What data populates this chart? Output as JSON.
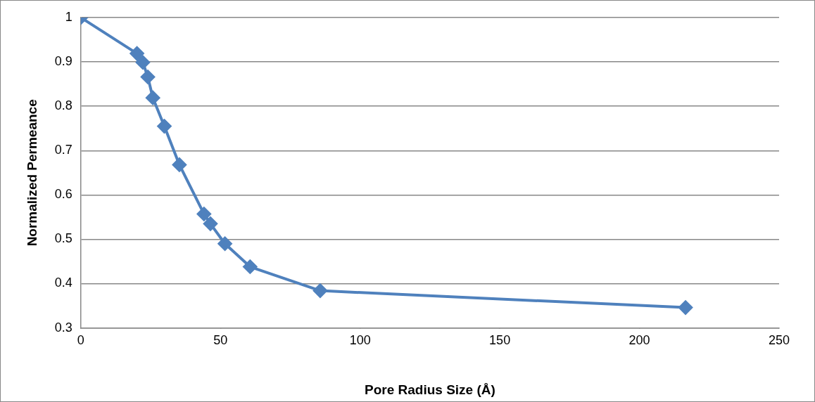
{
  "chart_data": {
    "type": "line",
    "xlabel": "Pore Radius Size (Å)",
    "ylabel": "Normalized Permeance",
    "x": [
      0,
      20.1,
      22.2,
      24.0,
      25.8,
      29.9,
      35.3,
      44.1,
      46.4,
      51.6,
      60.6,
      85.7,
      216.5
    ],
    "series": [
      {
        "color": "#4f81bd",
        "values": [
          1,
          0.919,
          0.899,
          0.866,
          0.819,
          0.755,
          0.668,
          0.557,
          0.535,
          0.49,
          0.438,
          0.384,
          0.346
        ]
      }
    ],
    "xlim": [
      0,
      250
    ],
    "xticks": [
      0,
      50,
      100,
      150,
      200,
      250
    ],
    "ylim": [
      0.3,
      1
    ],
    "yticks": [
      0.3,
      0.4,
      0.5,
      0.6,
      0.7,
      0.8,
      0.9,
      1
    ],
    "grid": "y",
    "legend": false,
    "marker": "diamond",
    "line_style": "solid"
  }
}
